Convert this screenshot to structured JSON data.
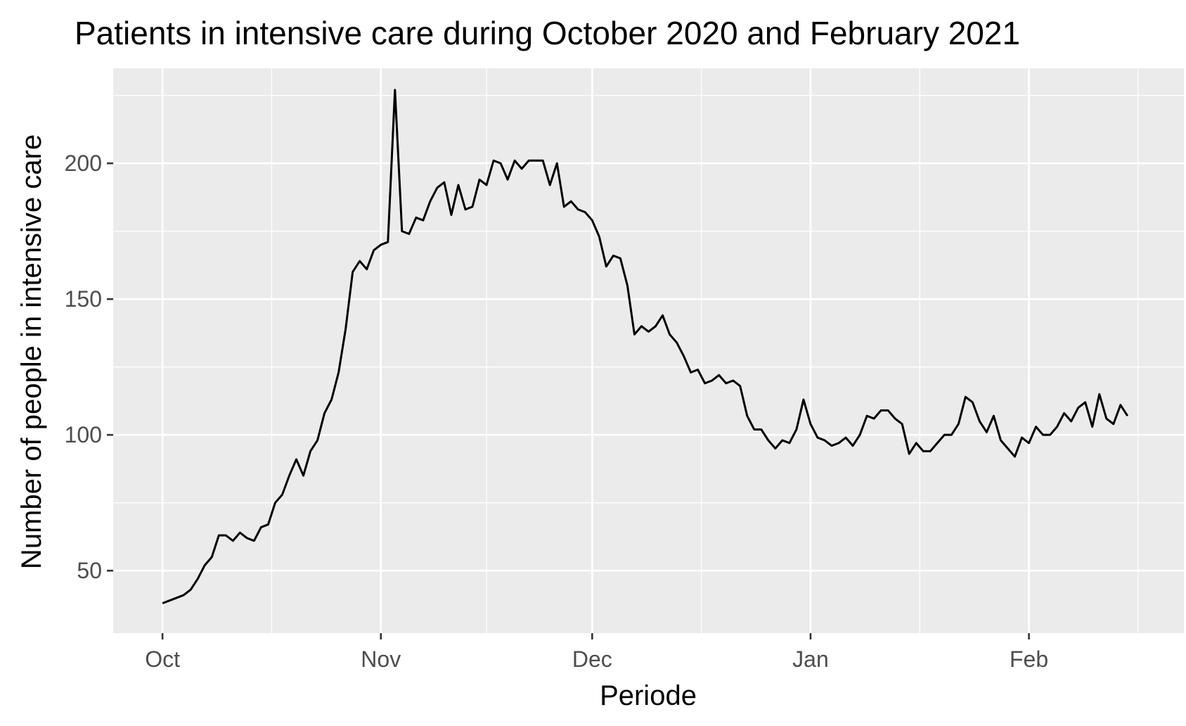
{
  "chart_data": {
    "type": "line",
    "title": "Patients in intensive care during October 2020 and February 2021",
    "xlabel": "Periode",
    "ylabel": "Number of people in intensive care",
    "x_start": "2020-10-01",
    "x_ticks": [
      {
        "label": "Oct",
        "date": "2020-10-01"
      },
      {
        "label": "Nov",
        "date": "2020-11-01"
      },
      {
        "label": "Dec",
        "date": "2020-12-01"
      },
      {
        "label": "Jan",
        "date": "2021-01-01"
      },
      {
        "label": "Feb",
        "date": "2021-02-01"
      }
    ],
    "y_ticks": [
      50,
      100,
      150,
      200
    ],
    "ylim": [
      27,
      235
    ],
    "xlim": [
      "2020-09-24",
      "2021-02-23"
    ],
    "grid": true,
    "background": "#ebebeb",
    "line_color": "#000000",
    "series": [
      {
        "values": [
          38,
          39,
          40,
          41,
          43,
          47,
          52,
          55,
          63,
          63,
          61,
          64,
          62,
          61,
          66,
          67,
          75,
          78,
          85,
          91,
          85,
          94,
          98,
          108,
          113,
          123,
          139,
          160,
          164,
          161,
          168,
          170,
          171,
          227,
          175,
          174,
          180,
          179,
          186,
          191,
          193,
          181,
          192,
          183,
          184,
          194,
          192,
          201,
          200,
          194,
          201,
          198,
          201,
          201,
          201,
          192,
          200,
          184,
          186,
          183,
          182,
          179,
          173,
          162,
          166,
          165,
          155,
          137,
          140,
          138,
          140,
          144,
          137,
          134,
          129,
          123,
          124,
          119,
          120,
          122,
          119,
          120,
          118,
          107,
          102,
          102,
          98,
          95,
          98,
          97,
          102,
          113,
          104,
          99,
          98,
          96,
          97,
          99,
          96,
          100,
          107,
          106,
          109,
          109,
          106,
          104,
          93,
          97,
          94,
          94,
          97,
          100,
          100,
          104,
          114,
          112,
          105,
          101,
          107,
          98,
          95,
          92,
          99,
          97,
          103,
          100,
          100,
          103,
          108,
          105,
          110,
          112,
          103,
          115,
          106,
          104,
          111,
          107
        ]
      }
    ]
  }
}
